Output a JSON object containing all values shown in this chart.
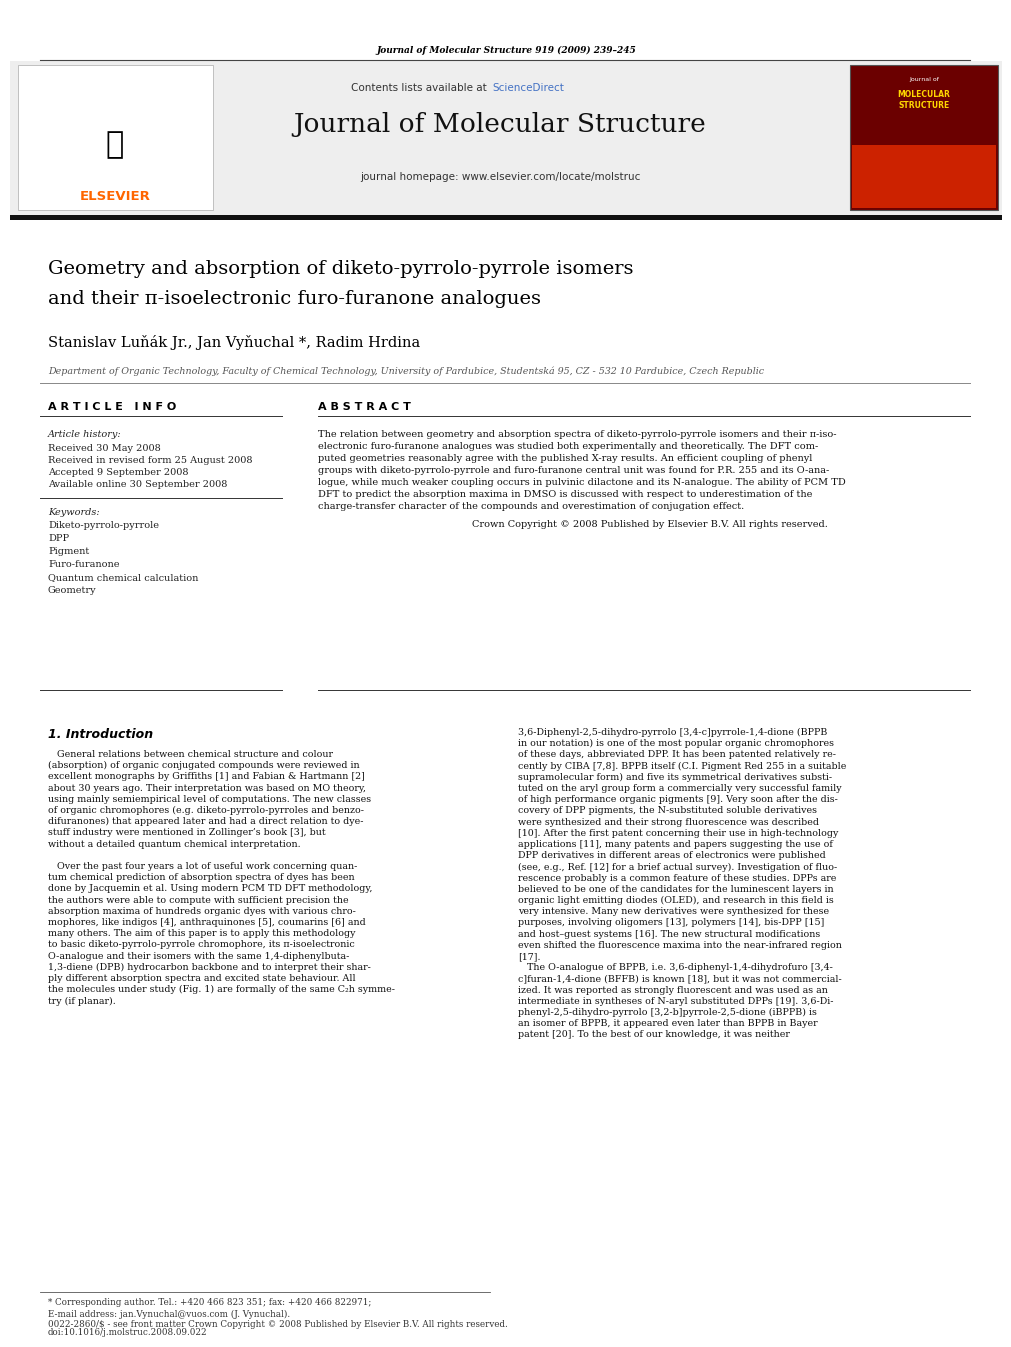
{
  "page_width": 9.92,
  "page_height": 13.23,
  "bg_color": "#ffffff",
  "journal_ref": "Journal of Molecular Structure 919 (2009) 239–245",
  "sciencedirect_color": "#4472c4",
  "journal_name": "Journal of Molecular Structure",
  "journal_homepage": "journal homepage: www.elsevier.com/locate/molstruc",
  "elsevier_color": "#ff6600",
  "elsevier_text": "ELSEVIER",
  "title_line1": "Geometry and absorption of diketo-pyrrolo-pyrrole isomers",
  "title_line2": "and their π-isoelectronic furo-furanone analogues",
  "authors": "Stanislav Luňák Jr., Jan Vyňuchal *, Radim Hrdina",
  "affiliation": "Department of Organic Technology, Faculty of Chemical Technology, University of Pardubice, Studentská 95, CZ - 532 10 Pardubice, Czech Republic",
  "article_info_header": "A R T I C L E   I N F O",
  "abstract_header": "A B S T R A C T",
  "article_history_label": "Article history:",
  "received": "Received 30 May 2008",
  "received_revised": "Received in revised form 25 August 2008",
  "accepted": "Accepted 9 September 2008",
  "available": "Available online 30 September 2008",
  "keywords_label": "Keywords:",
  "keywords": [
    "Diketo-pyrrolo-pyrrole",
    "DPP",
    "Pigment",
    "Furo-furanone",
    "Quantum chemical calculation",
    "Geometry"
  ],
  "copyright_text": "Crown Copyright © 2008 Published by Elsevier B.V. All rights reserved.",
  "intro_header": "1. Introduction",
  "footer_line1": "* Corresponding author. Tel.: +420 466 823 351; fax: +420 466 822971;",
  "footer_line2": "E-mail address: jan.Vynuchal@vuos.com (J. Vynuchal).",
  "footer_copyright": "0022-2860/$ - see front matter Crown Copyright © 2008 Published by Elsevier B.V. All rights reserved.",
  "footer_doi": "doi:10.1016/j.molstruc.2008.09.022",
  "header_bg": "#eeeeee",
  "thick_bar_color": "#111111"
}
